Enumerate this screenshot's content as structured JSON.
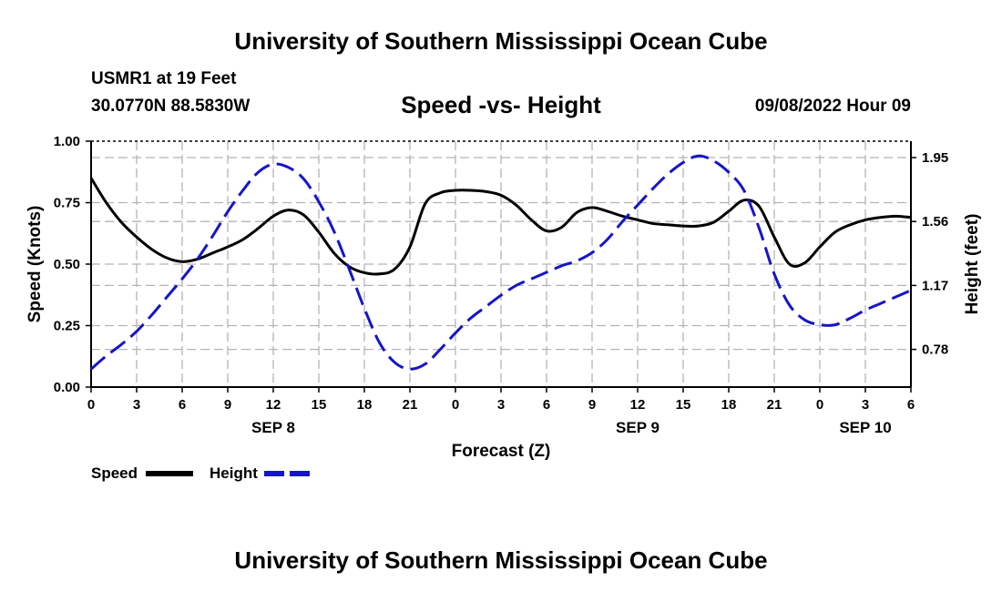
{
  "header": {
    "title": "University of Southern Mississippi Ocean Cube",
    "station": "USMR1 at 19 Feet",
    "coords": "30.0770N  88.5830W",
    "subtitle": "Speed -vs- Height",
    "datetime": "09/08/2022 Hour 09"
  },
  "footer": {
    "title": "University of Southern Mississippi Ocean Cube"
  },
  "colors": {
    "speed": "#000000",
    "height": "#1515c8",
    "grid": "#b4b4b4"
  },
  "chart_data": {
    "type": "line",
    "title": "Speed -vs- Height",
    "xlabel": "Forecast (Z)",
    "ylabel": "Speed (Knots)",
    "y2label": "Height (feet)",
    "xlim": [
      0,
      54
    ],
    "ylim": [
      0,
      1
    ],
    "y2lim": [
      0.55,
      2.05
    ],
    "x_ticks": [
      0,
      3,
      6,
      9,
      12,
      15,
      18,
      21,
      24,
      27,
      30,
      33,
      36,
      39,
      42,
      45,
      48,
      51,
      54
    ],
    "x_tick_labels": [
      "0",
      "3",
      "6",
      "9",
      "12",
      "15",
      "18",
      "21",
      "0",
      "3",
      "6",
      "9",
      "12",
      "15",
      "18",
      "21",
      "0",
      "3",
      "6"
    ],
    "date_labels": [
      {
        "x": 12,
        "label": "SEP 8"
      },
      {
        "x": 36,
        "label": "SEP 9"
      },
      {
        "x": 51,
        "label": "SEP 10"
      }
    ],
    "y_ticks": [
      0,
      0.25,
      0.5,
      0.75,
      1.0
    ],
    "y_tick_labels": [
      "0.00",
      "0.25",
      "0.50",
      "0.75",
      "1.00"
    ],
    "y2_ticks": [
      0.78,
      1.17,
      1.56,
      1.95
    ],
    "y2_tick_labels": [
      "0.78",
      "1.17",
      "1.56",
      "1.95"
    ],
    "grid": true,
    "legend": {
      "placement": "bottom-left",
      "speed_label": "Speed",
      "height_label": "Height"
    },
    "series": [
      {
        "name": "Speed",
        "axis": "left",
        "style": "solid",
        "x": [
          0,
          1,
          2,
          3,
          4,
          5,
          6,
          7,
          8,
          9,
          10,
          11,
          12,
          13,
          14,
          15,
          16,
          17,
          18,
          19,
          20,
          21,
          22,
          23,
          24,
          25,
          26,
          27,
          28,
          29,
          30,
          31,
          32,
          33,
          34,
          35,
          36,
          37,
          38,
          39,
          40,
          41,
          42,
          43,
          44,
          45,
          46,
          47,
          48,
          49,
          50,
          51,
          52,
          53,
          54
        ],
        "values": [
          0.85,
          0.75,
          0.67,
          0.61,
          0.56,
          0.525,
          0.51,
          0.52,
          0.545,
          0.57,
          0.6,
          0.645,
          0.695,
          0.72,
          0.7,
          0.63,
          0.545,
          0.49,
          0.465,
          0.46,
          0.48,
          0.57,
          0.745,
          0.79,
          0.8,
          0.8,
          0.795,
          0.78,
          0.74,
          0.68,
          0.635,
          0.65,
          0.71,
          0.73,
          0.715,
          0.695,
          0.68,
          0.665,
          0.66,
          0.655,
          0.655,
          0.67,
          0.715,
          0.76,
          0.735,
          0.61,
          0.5,
          0.505,
          0.57,
          0.63,
          0.66,
          0.68,
          0.69,
          0.695,
          0.69
        ]
      },
      {
        "name": "Height",
        "axis": "right",
        "style": "dashed",
        "x": [
          0,
          1,
          2,
          3,
          4,
          5,
          6,
          7,
          8,
          9,
          10,
          11,
          12,
          13,
          14,
          15,
          16,
          17,
          18,
          19,
          20,
          21,
          22,
          23,
          24,
          25,
          26,
          27,
          28,
          29,
          30,
          31,
          32,
          33,
          34,
          35,
          36,
          37,
          38,
          39,
          40,
          41,
          42,
          43,
          44,
          45,
          46,
          47,
          48,
          49,
          50,
          51,
          52,
          53,
          54
        ],
        "values": [
          0.66,
          0.74,
          0.81,
          0.89,
          0.99,
          1.1,
          1.21,
          1.33,
          1.47,
          1.62,
          1.75,
          1.86,
          1.91,
          1.89,
          1.82,
          1.68,
          1.5,
          1.27,
          1.03,
          0.82,
          0.7,
          0.66,
          0.69,
          0.78,
          0.88,
          0.97,
          1.04,
          1.11,
          1.17,
          1.21,
          1.25,
          1.29,
          1.32,
          1.37,
          1.45,
          1.56,
          1.66,
          1.76,
          1.85,
          1.92,
          1.96,
          1.93,
          1.86,
          1.75,
          1.52,
          1.24,
          1.05,
          0.96,
          0.93,
          0.93,
          0.97,
          1.02,
          1.06,
          1.1,
          1.14
        ]
      }
    ]
  }
}
